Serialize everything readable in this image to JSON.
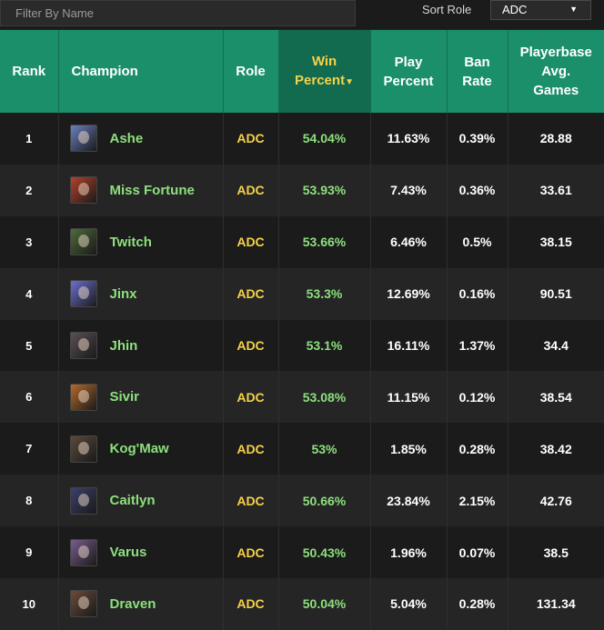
{
  "filter": {
    "placeholder": "Filter By Name"
  },
  "sort": {
    "label": "Sort Role",
    "selected": "ADC"
  },
  "headers": {
    "rank": "Rank",
    "champion": "Champion",
    "role": "Role",
    "win_line1": "Win",
    "win_line2": "Percent",
    "sort_arrow": "▼",
    "play_line1": "Play",
    "play_line2": "Percent",
    "ban_line1": "Ban",
    "ban_line2": "Rate",
    "pb_line1": "Playerbase",
    "pb_line2": "Avg.",
    "pb_line3": "Games"
  },
  "colors": {
    "header": "#1b8f6a",
    "header_sorted": "#126a4f",
    "accent_green": "#8ee07e",
    "accent_yellow": "#f6d24a"
  },
  "rows": [
    {
      "rank": "1",
      "name": "Ashe",
      "role": "ADC",
      "win": "54.04%",
      "play": "11.63%",
      "ban": "0.39%",
      "games": "28.88",
      "icon": "ashe-portrait-icon",
      "avatar_color": "#6c7fbf"
    },
    {
      "rank": "2",
      "name": "Miss Fortune",
      "role": "ADC",
      "win": "53.93%",
      "play": "7.43%",
      "ban": "0.36%",
      "games": "33.61",
      "icon": "miss-fortune-portrait-icon",
      "avatar_color": "#b5412a"
    },
    {
      "rank": "3",
      "name": "Twitch",
      "role": "ADC",
      "win": "53.66%",
      "play": "6.46%",
      "ban": "0.5%",
      "games": "38.15",
      "icon": "twitch-portrait-icon",
      "avatar_color": "#4d6b3a"
    },
    {
      "rank": "4",
      "name": "Jinx",
      "role": "ADC",
      "win": "53.3%",
      "play": "12.69%",
      "ban": "0.16%",
      "games": "90.51",
      "icon": "jinx-portrait-icon",
      "avatar_color": "#6b6fd0"
    },
    {
      "rank": "5",
      "name": "Jhin",
      "role": "ADC",
      "win": "53.1%",
      "play": "16.11%",
      "ban": "1.37%",
      "games": "34.4",
      "icon": "jhin-portrait-icon",
      "avatar_color": "#5a4f55"
    },
    {
      "rank": "6",
      "name": "Sivir",
      "role": "ADC",
      "win": "53.08%",
      "play": "11.15%",
      "ban": "0.12%",
      "games": "38.54",
      "icon": "sivir-portrait-icon",
      "avatar_color": "#b56a2a"
    },
    {
      "rank": "7",
      "name": "Kog'Maw",
      "role": "ADC",
      "win": "53%",
      "play": "1.85%",
      "ban": "0.28%",
      "games": "38.42",
      "icon": "kogmaw-portrait-icon",
      "avatar_color": "#5b4a3a"
    },
    {
      "rank": "8",
      "name": "Caitlyn",
      "role": "ADC",
      "win": "50.66%",
      "play": "23.84%",
      "ban": "2.15%",
      "games": "42.76",
      "icon": "caitlyn-portrait-icon",
      "avatar_color": "#3c3f6b"
    },
    {
      "rank": "9",
      "name": "Varus",
      "role": "ADC",
      "win": "50.43%",
      "play": "1.96%",
      "ban": "0.07%",
      "games": "38.5",
      "icon": "varus-portrait-icon",
      "avatar_color": "#7a5d8c"
    },
    {
      "rank": "10",
      "name": "Draven",
      "role": "ADC",
      "win": "50.04%",
      "play": "5.04%",
      "ban": "0.28%",
      "games": "131.34",
      "icon": "draven-portrait-icon",
      "avatar_color": "#6a4a3a"
    }
  ]
}
